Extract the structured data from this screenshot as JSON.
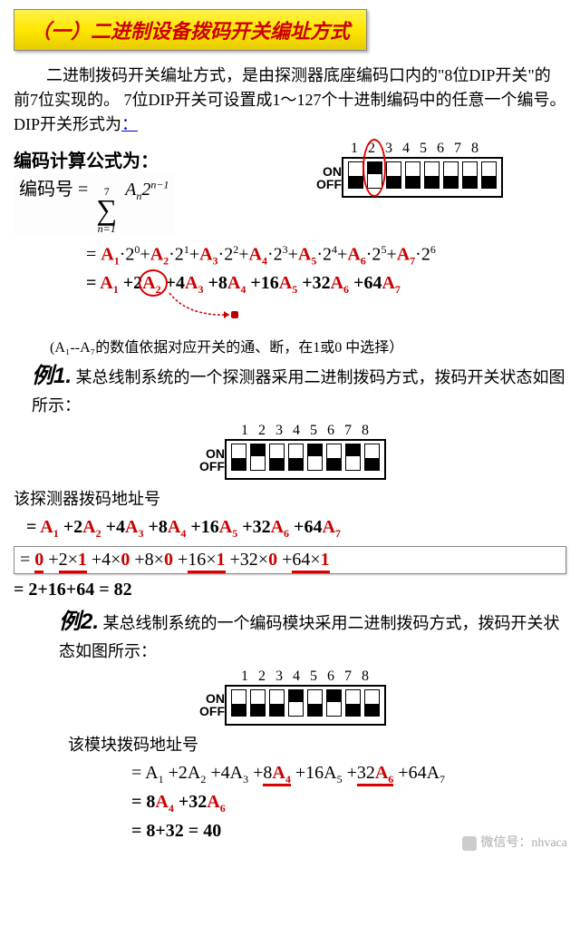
{
  "title": "（一）二进制设备拨码开关编址方式",
  "intro": "二进制拨码开关编址方式，是由探测器底座编码口内的\"8位DIP开关\"的前7位实现的。 7位DIP开关可设置成1～127个十进制编码中的任意一个编号。 DIP开关形式为",
  "intro_link": "：",
  "formula_head": "编码计算公式为：",
  "encode_label": "编码号 =",
  "sigma_top": "7",
  "sigma_bot": "n=1",
  "sigma_body_A": "A",
  "sigma_body_n": "n",
  "sigma_body_2": "2",
  "sigma_body_exp": "n−1",
  "dip_header": {
    "numbers": [
      "1",
      "2",
      "3",
      "4",
      "5",
      "6",
      "7",
      "8"
    ],
    "on": "ON",
    "off": "OFF",
    "states": [
      "off",
      "on",
      "off",
      "off",
      "off",
      "off",
      "off",
      "off"
    ],
    "circle_index": 1
  },
  "expand1": {
    "prefix": "= ",
    "terms": [
      {
        "A": "A",
        "i": "1",
        "p": "0"
      },
      {
        "A": "A",
        "i": "2",
        "p": "1"
      },
      {
        "A": "A",
        "i": "3",
        "p": "2"
      },
      {
        "A": "A",
        "i": "4",
        "p": "3"
      },
      {
        "A": "A",
        "i": "5",
        "p": "4"
      },
      {
        "A": "A",
        "i": "6",
        "p": "5"
      },
      {
        "A": "A",
        "i": "7",
        "p": "6"
      }
    ]
  },
  "expand2": {
    "prefix": "= ",
    "terms": [
      {
        "c": "",
        "A": "A",
        "i": "1"
      },
      {
        "c": "2",
        "A": "A",
        "i": "2"
      },
      {
        "c": "4",
        "A": "A",
        "i": "3"
      },
      {
        "c": "8",
        "A": "A",
        "i": "4"
      },
      {
        "c": "16",
        "A": "A",
        "i": "5"
      },
      {
        "c": "32",
        "A": "A",
        "i": "6"
      },
      {
        "c": "64",
        "A": "A",
        "i": "7"
      }
    ],
    "circle_index": 1
  },
  "note": "(A₁--A₇的数值依据对应开关的通、断，在1或0 中选择）",
  "ex1": {
    "label": "例1.",
    "text": "某总线制系统的一个探测器采用二进制拨码方式，拨码开关状态如图所示：",
    "dip": {
      "numbers": [
        "1",
        "2",
        "3",
        "4",
        "5",
        "6",
        "7",
        "8"
      ],
      "on": "ON",
      "off": "OFF",
      "states": [
        "off",
        "on",
        "off",
        "off",
        "on",
        "off",
        "on",
        "off"
      ]
    },
    "addr_label": "该探测器拨码地址号",
    "line1": {
      "prefix": "= ",
      "terms": [
        {
          "c": "",
          "A": "A",
          "i": "1"
        },
        {
          "c": "2",
          "A": "A",
          "i": "2"
        },
        {
          "c": "4",
          "A": "A",
          "i": "3"
        },
        {
          "c": "8",
          "A": "A",
          "i": "4"
        },
        {
          "c": "16",
          "A": "A",
          "i": "5"
        },
        {
          "c": "32",
          "A": "A",
          "i": "6"
        },
        {
          "c": "64",
          "A": "A",
          "i": "7"
        }
      ]
    },
    "line2_prefix": "= ",
    "line2_terms": [
      {
        "c": "",
        "v": "0",
        "u": true
      },
      {
        "c": "2×",
        "v": "1",
        "u": true
      },
      {
        "c": "4×",
        "v": "0"
      },
      {
        "c": "8×",
        "v": "0"
      },
      {
        "c": "16×",
        "v": "1",
        "u": true
      },
      {
        "c": "32×",
        "v": "0"
      },
      {
        "c": "64×",
        "v": "1",
        "u": true
      }
    ],
    "line3": "= 2+16+64 =  82"
  },
  "ex2": {
    "label": "例2.",
    "text": "某总线制系统的一个编码模块采用二进制拨码方式，拨码开关状态如图所示：",
    "dip": {
      "numbers": [
        "1",
        "2",
        "3",
        "4",
        "5",
        "6",
        "7",
        "8"
      ],
      "on": "ON",
      "off": "OFF",
      "states": [
        "off",
        "off",
        "off",
        "on",
        "off",
        "on",
        "off",
        "off"
      ]
    },
    "addr_label": "该模块拨码地址号",
    "line1": {
      "prefix": "= ",
      "terms": [
        {
          "c": "",
          "A": "A",
          "i": "1",
          "plain": true
        },
        {
          "c": "2",
          "A": "A",
          "i": "2",
          "plain": true
        },
        {
          "c": "4",
          "A": "A",
          "i": "3",
          "plain": true
        },
        {
          "c": "8",
          "A": "A",
          "i": "4",
          "u": true
        },
        {
          "c": "16",
          "A": "A",
          "i": "5",
          "plain": true
        },
        {
          "c": "32",
          "A": "A",
          "i": "6",
          "u": true
        },
        {
          "c": "64",
          "A": "A",
          "i": "7",
          "plain": true
        }
      ]
    },
    "line2": {
      "prefix": "= ",
      "terms": [
        {
          "c": "8",
          "A": "A",
          "i": "4"
        },
        {
          "c": "32",
          "A": "A",
          "i": "6"
        }
      ]
    },
    "line3": "= 8+32  =  40"
  },
  "watermark": "微信号：nhvaca",
  "colors": {
    "red": "#cc0000",
    "title_bg": "#ffe600",
    "black": "#000000"
  }
}
